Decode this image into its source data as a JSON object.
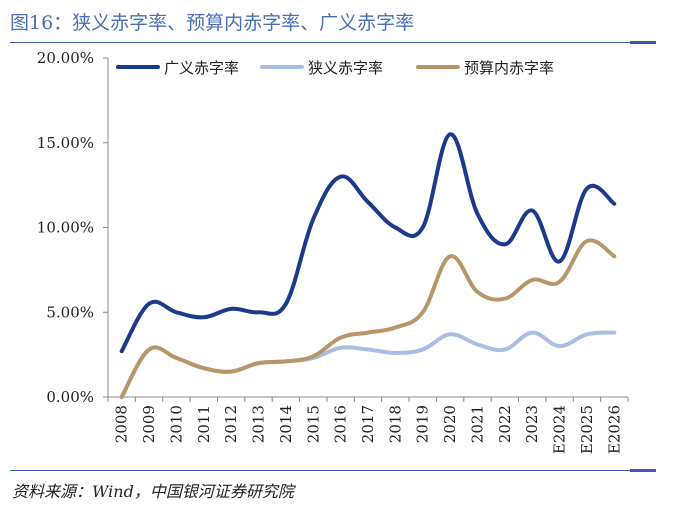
{
  "figure": {
    "title": "图16：狭义赤字率、预算内赤字率、广义赤字率",
    "source": "资料来源：Wind，中国银河证券研究院"
  },
  "chart_data": {
    "type": "line",
    "title": "狭义赤字率、预算内赤字率、广义赤字率",
    "xlabel": "",
    "ylabel": "",
    "categories": [
      "2008",
      "2009",
      "2010",
      "2011",
      "2012",
      "2013",
      "2014",
      "2015",
      "2016",
      "2017",
      "2018",
      "2019",
      "2020",
      "2021",
      "2022",
      "2023",
      "E2024",
      "E2025",
      "E2026"
    ],
    "y_ticks": [
      "0.00%",
      "5.00%",
      "10.00%",
      "15.00%",
      "20.00%"
    ],
    "ylim": [
      0,
      20
    ],
    "grid": false,
    "legend_position": "top",
    "series": [
      {
        "name": "广义赤字率",
        "color": "#1c3a8c",
        "values": [
          2.7,
          5.5,
          5.0,
          4.7,
          5.2,
          5.0,
          5.5,
          10.5,
          13.0,
          11.5,
          10.0,
          10.0,
          15.5,
          10.8,
          9.0,
          11.0,
          8.0,
          12.3,
          11.4
        ]
      },
      {
        "name": "狭义赤字率",
        "color": "#a9bde3",
        "values": [
          0.0,
          2.8,
          2.3,
          1.7,
          1.5,
          2.0,
          2.1,
          2.3,
          2.9,
          2.8,
          2.6,
          2.8,
          3.7,
          3.1,
          2.8,
          3.8,
          3.0,
          3.7,
          3.8
        ]
      },
      {
        "name": "预算内赤字率",
        "color": "#b8966a",
        "values": [
          0.0,
          2.8,
          2.3,
          1.7,
          1.5,
          2.0,
          2.1,
          2.4,
          3.5,
          3.8,
          4.1,
          5.0,
          8.3,
          6.2,
          5.8,
          6.9,
          6.8,
          9.2,
          8.3
        ]
      }
    ]
  }
}
